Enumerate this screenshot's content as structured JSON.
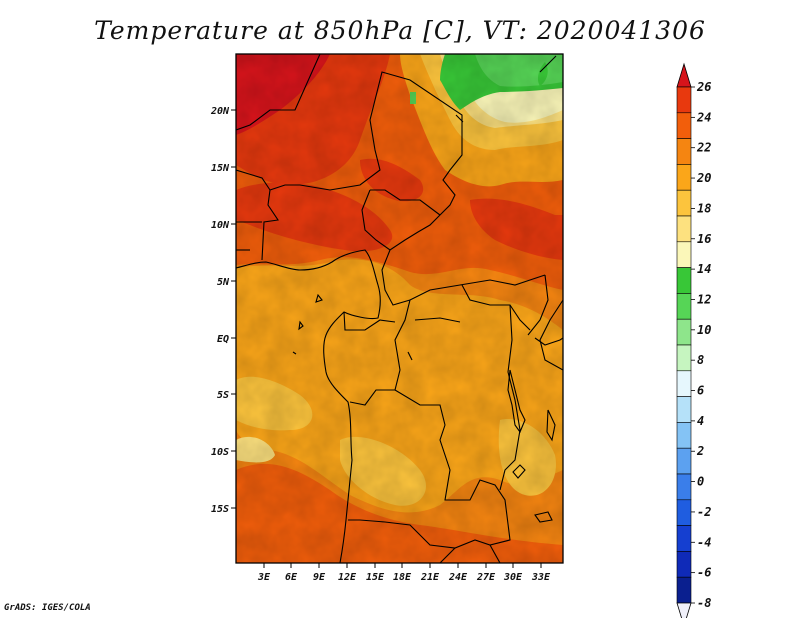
{
  "title": "Temperature at 850hPa [C], VT: 2020041306",
  "credit": "GrADS: IGES/COLA",
  "map": {
    "lat_labels": [
      "20N",
      "15N",
      "10N",
      "5N",
      "EQ",
      "5S",
      "10S",
      "15S"
    ],
    "lon_labels": [
      "3E",
      "6E",
      "9E",
      "12E",
      "15E",
      "18E",
      "21E",
      "24E",
      "27E",
      "30E",
      "33E"
    ]
  },
  "colorbar": {
    "labels": [
      "26",
      "24",
      "22",
      "20",
      "18",
      "16",
      "14",
      "12",
      "10",
      "8",
      "6",
      "4",
      "2",
      "0",
      "-2",
      "-4",
      "-6",
      "-8"
    ],
    "colors": [
      "#d7141b",
      "#e8390e",
      "#f25e0b",
      "#f58511",
      "#fba619",
      "#fcc43d",
      "#fde17f",
      "#fbf7b9",
      "#38c737",
      "#56d556",
      "#8ee58b",
      "#c6f5c0",
      "#e6f7fd",
      "#b5e1f9",
      "#84c3f5",
      "#5ca1f0",
      "#3a7eea",
      "#1f5de0",
      "#153fd0",
      "#0f2ab8",
      "#0a1f8f",
      "#f0f0fa"
    ]
  }
}
